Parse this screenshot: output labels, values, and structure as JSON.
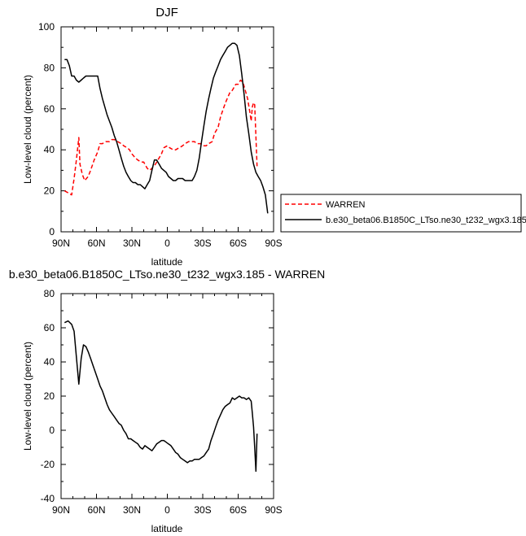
{
  "chart_data": [
    {
      "type": "line",
      "title": "DJF",
      "xlabel": "latitude",
      "ylabel": "Low-level cloud (percent)",
      "xlim": [
        90,
        -90
      ],
      "ylim": [
        0,
        100
      ],
      "x_ticks": [
        90,
        60,
        30,
        0,
        -30,
        -60,
        -90
      ],
      "x_tick_labels": [
        "90N",
        "60N",
        "30N",
        "0",
        "30S",
        "60S",
        "90S"
      ],
      "y_ticks": [
        0,
        20,
        40,
        60,
        80,
        100
      ],
      "y_tick_labels": [
        "0",
        "20",
        "40",
        "60",
        "80",
        "100"
      ],
      "grid": false,
      "legend_position": "right",
      "series": [
        {
          "name": "WARREN",
          "color": "#ff0000",
          "dash": "dashed",
          "x": [
            87,
            84,
            81,
            79,
            77,
            75,
            74,
            72,
            70,
            67,
            65,
            62,
            59,
            57,
            55,
            52,
            49,
            47,
            45,
            42,
            39,
            37,
            34,
            32,
            30,
            27,
            25,
            22,
            20,
            17,
            15,
            13,
            10,
            8,
            5,
            3,
            0,
            -2,
            -5,
            -7,
            -10,
            -13,
            -15,
            -18,
            -20,
            -23,
            -25,
            -28,
            -30,
            -33,
            -35,
            -38,
            -40,
            -43,
            -45,
            -48,
            -50,
            -53,
            -55,
            -58,
            -60,
            -62,
            -64,
            -66,
            -68,
            -70,
            -71,
            -72,
            -73,
            -74,
            -76
          ],
          "y": [
            20,
            19,
            18,
            26,
            35,
            46,
            33,
            28,
            25,
            27,
            30,
            35,
            39,
            43,
            43,
            44,
            44,
            45,
            45,
            44,
            43,
            42,
            41,
            40,
            38,
            36,
            35,
            34,
            34,
            31,
            30,
            31,
            33,
            35,
            38,
            41,
            42,
            41,
            40,
            40,
            41,
            42,
            43,
            44,
            44,
            44,
            43,
            43,
            42,
            42,
            43,
            44,
            48,
            51,
            56,
            61,
            64,
            68,
            69,
            72,
            72,
            74,
            73,
            69,
            65,
            58,
            54,
            61,
            63,
            62,
            32
          ]
        },
        {
          "name": "b.e30_beta06.B1850C_LTso.ne30_t232_wgx3.185",
          "color": "#000000",
          "dash": "solid",
          "x": [
            87,
            85,
            83,
            81,
            79,
            77,
            75,
            73,
            71,
            69,
            67,
            65,
            63,
            61,
            59,
            57,
            55,
            53,
            51,
            49,
            47,
            45,
            43,
            41,
            39,
            37,
            35,
            33,
            31,
            29,
            27,
            25,
            23,
            21,
            19,
            17,
            15,
            13,
            11,
            9,
            7,
            5,
            3,
            1,
            -1,
            -3,
            -5,
            -7,
            -9,
            -11,
            -13,
            -15,
            -17,
            -19,
            -21,
            -23,
            -25,
            -27,
            -29,
            -31,
            -33,
            -35,
            -37,
            -39,
            -41,
            -43,
            -45,
            -47,
            -49,
            -51,
            -53,
            -55,
            -57,
            -59,
            -61,
            -63,
            -65,
            -67,
            -69,
            -71,
            -73,
            -75,
            -77,
            -79,
            -81,
            -83,
            -85
          ],
          "y": [
            84,
            84,
            81,
            76,
            76,
            74,
            73,
            74,
            75,
            76,
            76,
            76,
            76,
            76,
            76,
            70,
            65,
            61,
            57,
            54,
            51,
            47,
            44,
            40,
            36,
            32,
            29,
            27,
            25,
            24,
            24,
            23,
            23,
            22,
            21,
            23,
            25,
            30,
            35,
            35,
            33,
            31,
            30,
            29,
            27,
            26,
            25,
            25,
            26,
            26,
            26,
            25,
            25,
            25,
            25,
            27,
            30,
            36,
            44,
            52,
            59,
            65,
            70,
            75,
            78,
            81,
            84,
            86,
            88,
            90,
            91,
            92,
            92,
            91,
            86,
            77,
            67,
            56,
            48,
            39,
            33,
            29,
            27,
            25,
            22,
            18,
            9
          ]
        }
      ]
    },
    {
      "type": "line",
      "title": "b.e30_beta06.B1850C_LTso.ne30_t232_wgx3.185 - WARREN",
      "xlabel": "latitude",
      "ylabel": "Low-level cloud (percent)",
      "xlim": [
        90,
        -90
      ],
      "ylim": [
        -40,
        80
      ],
      "x_ticks": [
        90,
        60,
        30,
        0,
        -30,
        -60,
        -90
      ],
      "x_tick_labels": [
        "90N",
        "60N",
        "30N",
        "0",
        "30S",
        "60S",
        "90S"
      ],
      "y_ticks": [
        -40,
        -20,
        0,
        20,
        40,
        60,
        80
      ],
      "y_tick_labels": [
        "-40",
        "-20",
        "0",
        "20",
        "40",
        "60",
        "80"
      ],
      "grid": false,
      "series": [
        {
          "color": "#000000",
          "dash": "solid",
          "x": [
            87,
            84,
            81,
            79,
            77,
            75,
            73,
            71,
            69,
            67,
            65,
            63,
            61,
            59,
            57,
            55,
            53,
            51,
            49,
            47,
            45,
            43,
            41,
            39,
            37,
            35,
            33,
            31,
            29,
            27,
            25,
            23,
            21,
            19,
            17,
            15,
            13,
            11,
            9,
            7,
            5,
            3,
            1,
            -1,
            -3,
            -5,
            -7,
            -9,
            -11,
            -13,
            -15,
            -17,
            -19,
            -21,
            -23,
            -25,
            -27,
            -29,
            -31,
            -33,
            -35,
            -37,
            -39,
            -41,
            -43,
            -45,
            -47,
            -49,
            -51,
            -53,
            -55,
            -57,
            -59,
            -61,
            -63,
            -65,
            -67,
            -69,
            -71,
            -72,
            -73,
            -74,
            -75,
            -76
          ],
          "y": [
            63,
            64,
            62,
            58,
            43,
            27,
            42,
            50,
            49,
            46,
            42,
            38,
            34,
            30,
            26,
            23,
            19,
            15,
            12,
            10,
            8,
            6,
            4,
            3,
            0,
            -2,
            -5,
            -5,
            -6,
            -7,
            -8,
            -10,
            -11,
            -9,
            -10,
            -11,
            -12,
            -10,
            -8,
            -7,
            -6,
            -6,
            -7,
            -8,
            -9,
            -11,
            -13,
            -14,
            -16,
            -17,
            -18,
            -19,
            -18,
            -18,
            -17,
            -17,
            -17,
            -16,
            -15,
            -13,
            -11,
            -6,
            -2,
            2,
            6,
            9,
            12,
            14,
            15,
            16,
            19,
            18,
            19,
            20,
            19,
            19,
            18,
            19,
            17,
            10,
            2,
            -10,
            -24,
            -2
          ]
        }
      ]
    }
  ]
}
